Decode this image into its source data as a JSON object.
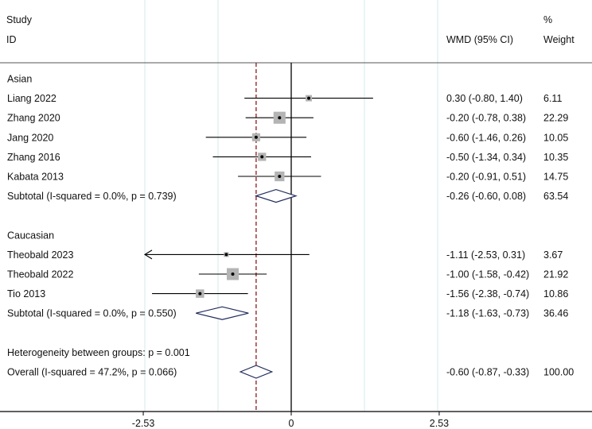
{
  "headers": {
    "study": "Study",
    "id": "ID",
    "wmd": "WMD (95% CI)",
    "pct": "%",
    "weight": "Weight"
  },
  "colors": {
    "box": "#b4b4b4",
    "ref_line": "#8b1a1a",
    "diamond": "#1f2a5a",
    "grid": "#d6e8ea"
  },
  "chart_data": {
    "type": "forest",
    "xticks": [
      -2.53,
      0,
      2.53
    ],
    "xtick_labels": [
      "-2.53",
      "0",
      "2.53"
    ],
    "xlim": [
      -4.9,
      5.0
    ],
    "null_line": 0,
    "overall_line": -0.6,
    "rows": [
      {
        "kind": "group",
        "label": "Asian"
      },
      {
        "kind": "study",
        "label": "Liang 2022",
        "est": 0.3,
        "lo": -0.8,
        "hi": 1.4,
        "ci_text": "0.30 (-0.80, 1.40)",
        "weight": "6.11",
        "w": 6.11
      },
      {
        "kind": "study",
        "label": "Zhang 2020",
        "est": -0.2,
        "lo": -0.78,
        "hi": 0.38,
        "ci_text": "-0.20 (-0.78, 0.38)",
        "weight": "22.29",
        "w": 22.29
      },
      {
        "kind": "study",
        "label": "Jang 2020",
        "est": -0.6,
        "lo": -1.46,
        "hi": 0.26,
        "ci_text": "-0.60 (-1.46, 0.26)",
        "weight": "10.05",
        "w": 10.05
      },
      {
        "kind": "study",
        "label": "Zhang 2016",
        "est": -0.5,
        "lo": -1.34,
        "hi": 0.34,
        "ci_text": "-0.50 (-1.34, 0.34)",
        "weight": "10.35",
        "w": 10.35
      },
      {
        "kind": "study",
        "label": "Kabata 2013",
        "est": -0.2,
        "lo": -0.91,
        "hi": 0.51,
        "ci_text": "-0.20 (-0.91, 0.51)",
        "weight": "14.75",
        "w": 14.75
      },
      {
        "kind": "subtotal",
        "label": "Subtotal  (I-squared = 0.0%, p = 0.739)",
        "est": -0.26,
        "lo": -0.6,
        "hi": 0.08,
        "ci_text": "-0.26 (-0.60, 0.08)",
        "weight": "63.54"
      },
      {
        "kind": "blank"
      },
      {
        "kind": "group",
        "label": "Caucasian"
      },
      {
        "kind": "study",
        "label": "Theobald 2023",
        "est": -1.11,
        "lo": -2.53,
        "hi": 0.31,
        "ci_text": "-1.11 (-2.53, 0.31)",
        "weight": "3.67",
        "w": 3.67,
        "arrow_left": true
      },
      {
        "kind": "study",
        "label": "Theobald 2022",
        "est": -1.0,
        "lo": -1.58,
        "hi": -0.42,
        "ci_text": "-1.00 (-1.58, -0.42)",
        "weight": "21.92",
        "w": 21.92
      },
      {
        "kind": "study",
        "label": "Tio 2013",
        "est": -1.56,
        "lo": -2.38,
        "hi": -0.74,
        "ci_text": "-1.56 (-2.38, -0.74)",
        "weight": "10.86",
        "w": 10.86
      },
      {
        "kind": "subtotal",
        "label": "Subtotal  (I-squared = 0.0%, p = 0.550)",
        "est": -1.18,
        "lo": -1.63,
        "hi": -0.73,
        "ci_text": "-1.18 (-1.63, -0.73)",
        "weight": "36.46"
      },
      {
        "kind": "blank"
      },
      {
        "kind": "note",
        "label": "Heterogeneity between groups: p = 0.001"
      },
      {
        "kind": "overall",
        "label": "Overall  (I-squared = 47.2%, p = 0.066)",
        "est": -0.6,
        "lo": -0.87,
        "hi": -0.33,
        "ci_text": "-0.60 (-0.87, -0.33)",
        "weight": "100.00"
      }
    ]
  }
}
